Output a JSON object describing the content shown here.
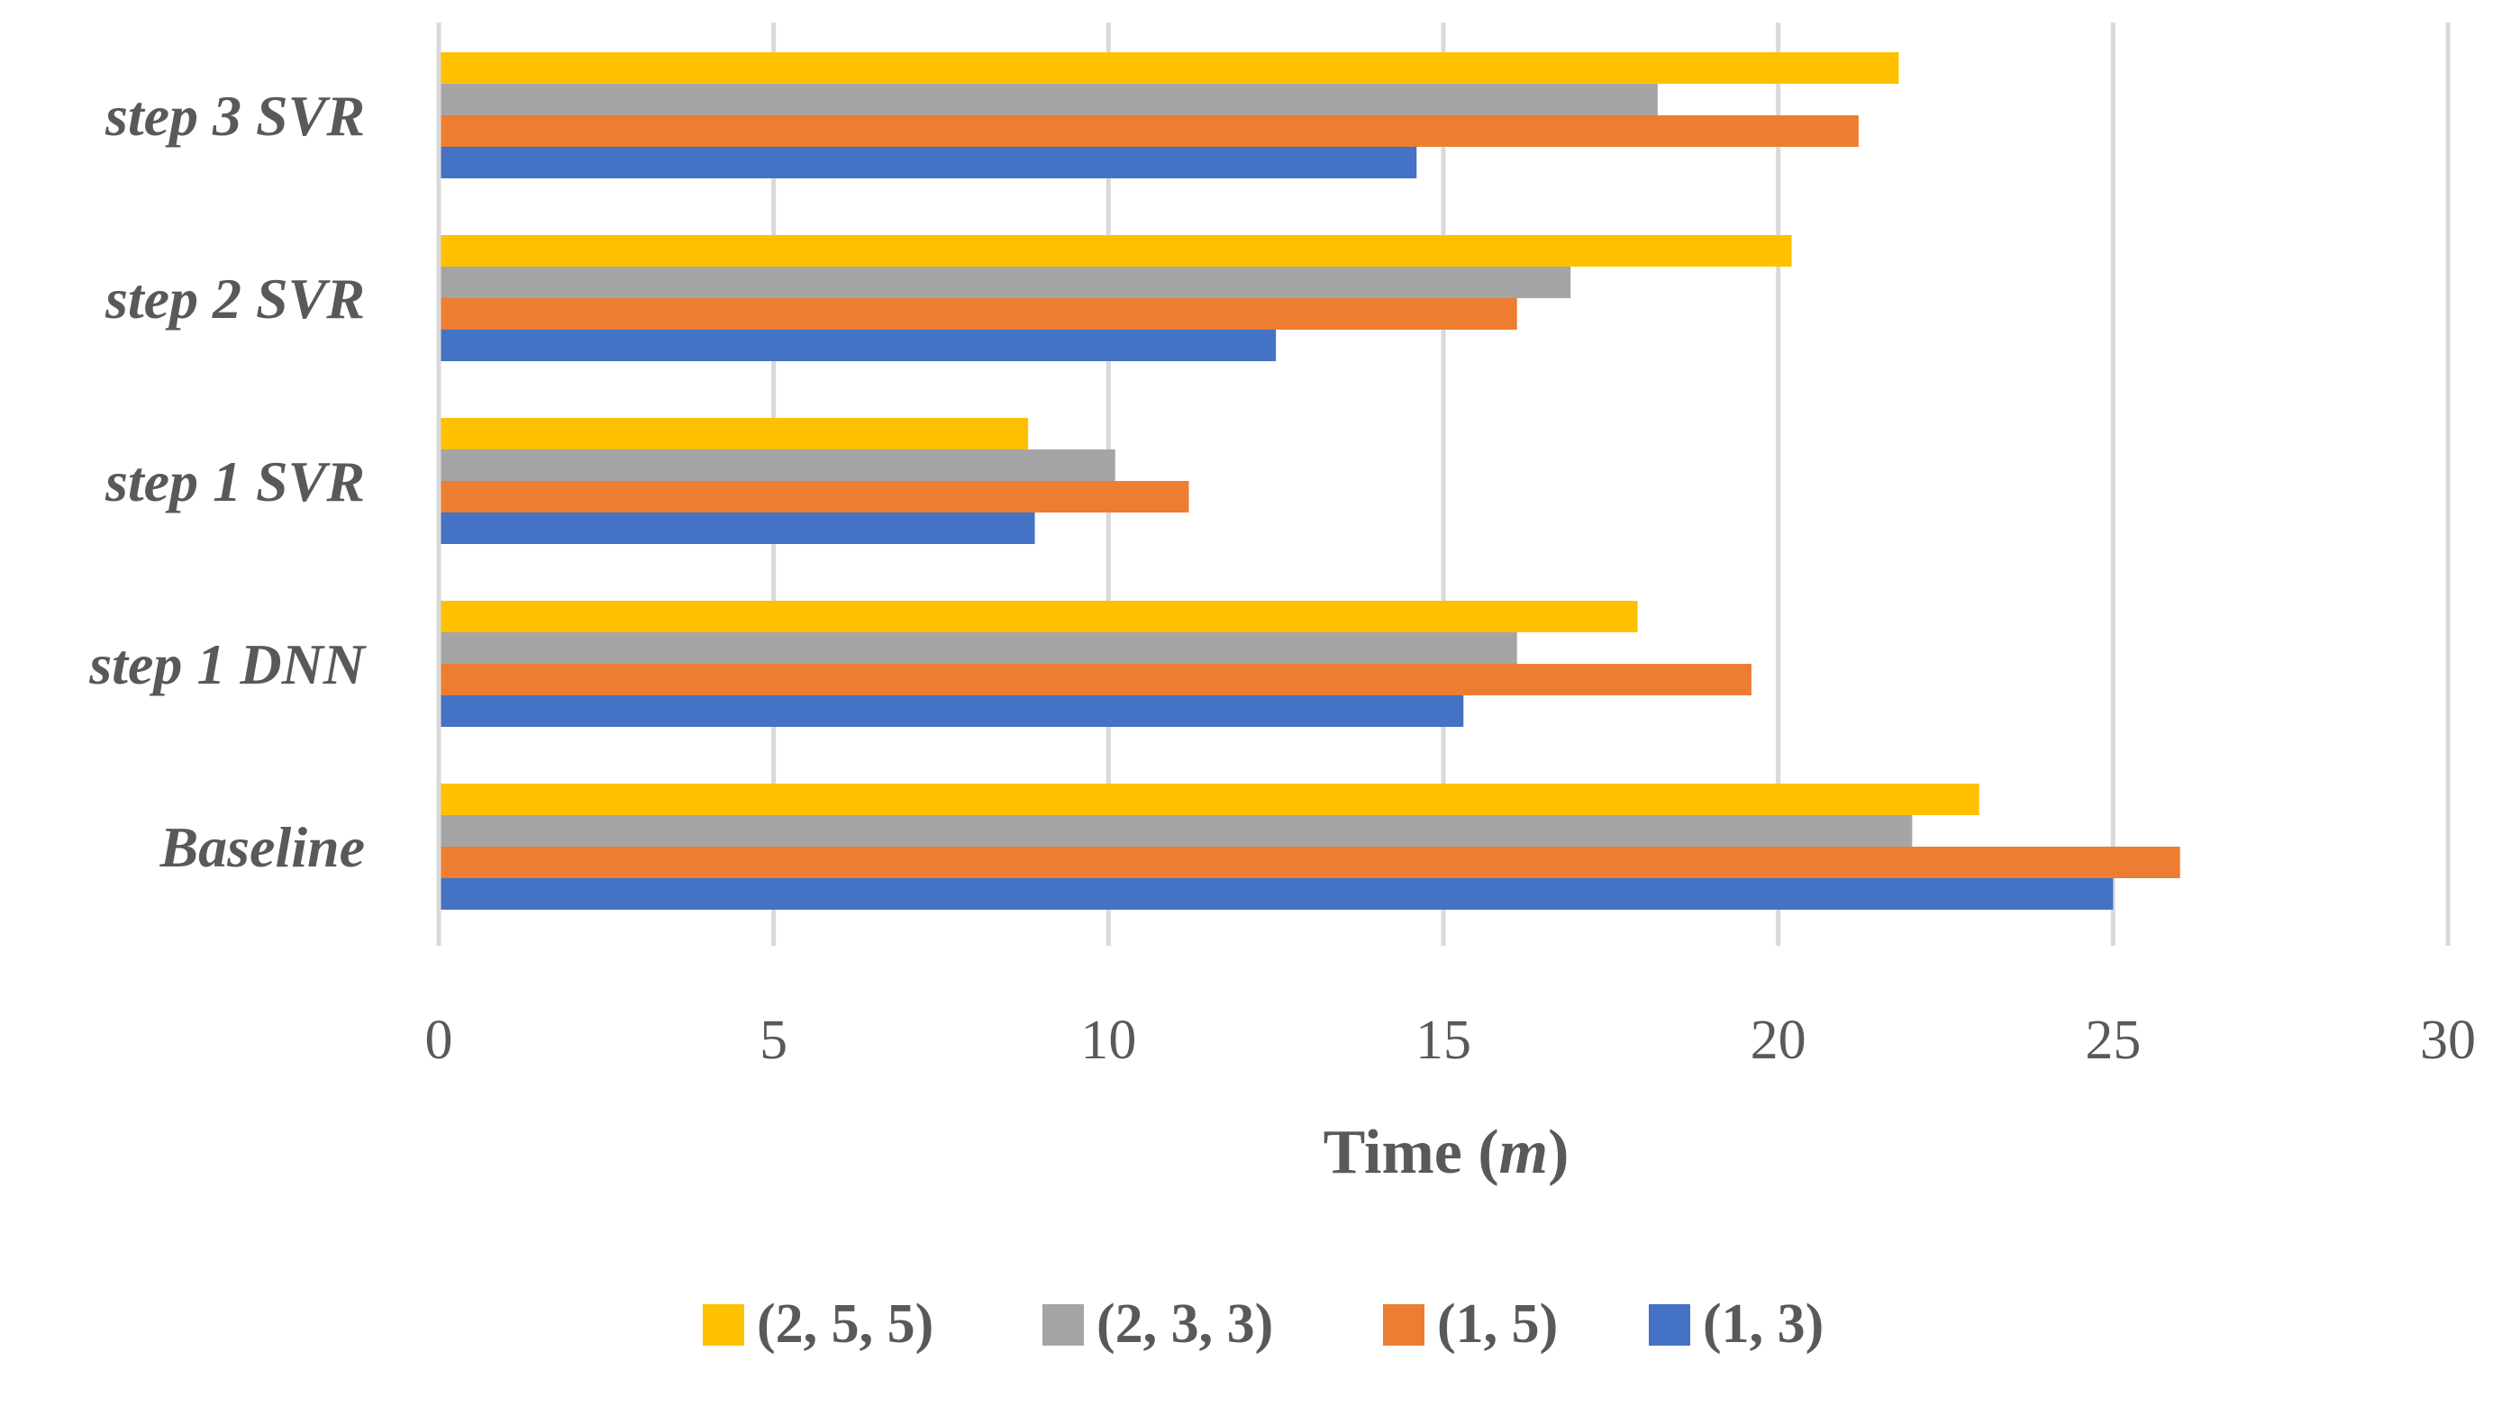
{
  "chart_data": {
    "type": "bar",
    "orientation": "horizontal",
    "title": "",
    "categories": [
      "Baseline",
      "step 1 DNN",
      "step 1 SVR",
      "step 2 SVR",
      "step 3 SVR"
    ],
    "series": [
      {
        "name": "(1, 3)",
        "color": "#4472C4",
        "values": [
          25,
          15.3,
          8.9,
          12.5,
          14.6
        ]
      },
      {
        "name": "(1, 5)",
        "color": "#ED7D31",
        "values": [
          26,
          19.6,
          11.2,
          16.1,
          21.2
        ]
      },
      {
        "name": "(2, 3, 3)",
        "color": "#A5A5A5",
        "values": [
          22,
          16.1,
          10.1,
          16.9,
          18.2
        ]
      },
      {
        "name": "(2, 5, 5)",
        "color": "#FFC000",
        "values": [
          23,
          17.9,
          8.8,
          20.2,
          21.8
        ]
      }
    ],
    "xlim": [
      0,
      30
    ],
    "xticks": [
      "0",
      "5",
      "10",
      "15",
      "20",
      "25",
      "30"
    ],
    "xlabel_text": "Time (",
    "xlabel_var": "m",
    "xlabel_close": ")",
    "ylabel": "",
    "grid": true,
    "legend": {
      "placement": "bottom-center",
      "order": [
        "(2, 5, 5)",
        "(2, 3, 3)",
        "(1, 5)",
        "(1, 3)"
      ]
    }
  }
}
